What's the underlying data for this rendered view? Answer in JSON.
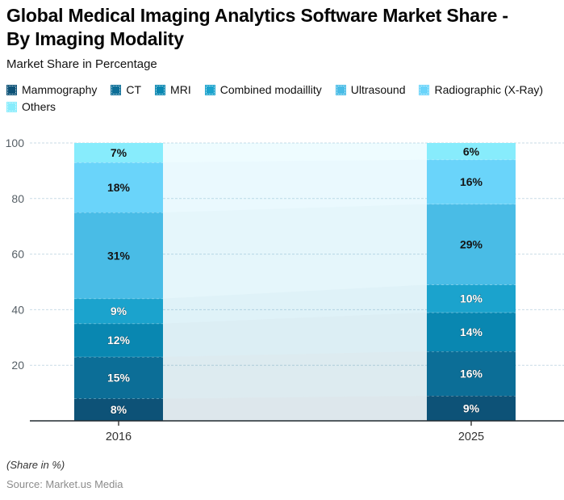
{
  "title": "Global Medical Imaging Analytics Software Market Share -\nBy Imaging Modality",
  "subtitle": "Market Share in Percentage",
  "footer": {
    "note": "(Share in %)",
    "source": "Source: Market.us Media"
  },
  "chart_data": {
    "type": "bar",
    "stacked": true,
    "title": "Global Medical Imaging Analytics Software Market Share - By Imaging Modality",
    "xlabel": "",
    "ylabel": "Market Share in Percentage",
    "categories": [
      "2016",
      "2025"
    ],
    "series": [
      {
        "name": "Mammography",
        "color": "#0d5277",
        "values": [
          8,
          9
        ]
      },
      {
        "name": "CT",
        "color": "#0c6e97",
        "values": [
          15,
          16
        ]
      },
      {
        "name": "MRI",
        "color": "#0987b1",
        "values": [
          12,
          14
        ]
      },
      {
        "name": "Combined modaillity",
        "color": "#1ba3cd",
        "values": [
          9,
          10
        ]
      },
      {
        "name": "Ultrasound",
        "color": "#49bce6",
        "values": [
          31,
          29
        ]
      },
      {
        "name": "Radiographic (X-Ray)",
        "color": "#6ad4fa",
        "values": [
          18,
          16
        ]
      },
      {
        "name": "Others",
        "color": "#87ecfc",
        "values": [
          7,
          6
        ]
      }
    ],
    "value_suffix": "%",
    "ylim": [
      0,
      100
    ],
    "yticks": [
      20,
      40,
      60,
      80,
      100
    ],
    "grid": true,
    "legend_position": "top",
    "colors": {
      "grid": "#c9dbe6",
      "axis": "#222b31",
      "tick": "#333333",
      "band_opacity": 0.14,
      "segment_divider": "rgba(255,255,255,0.55)"
    }
  }
}
